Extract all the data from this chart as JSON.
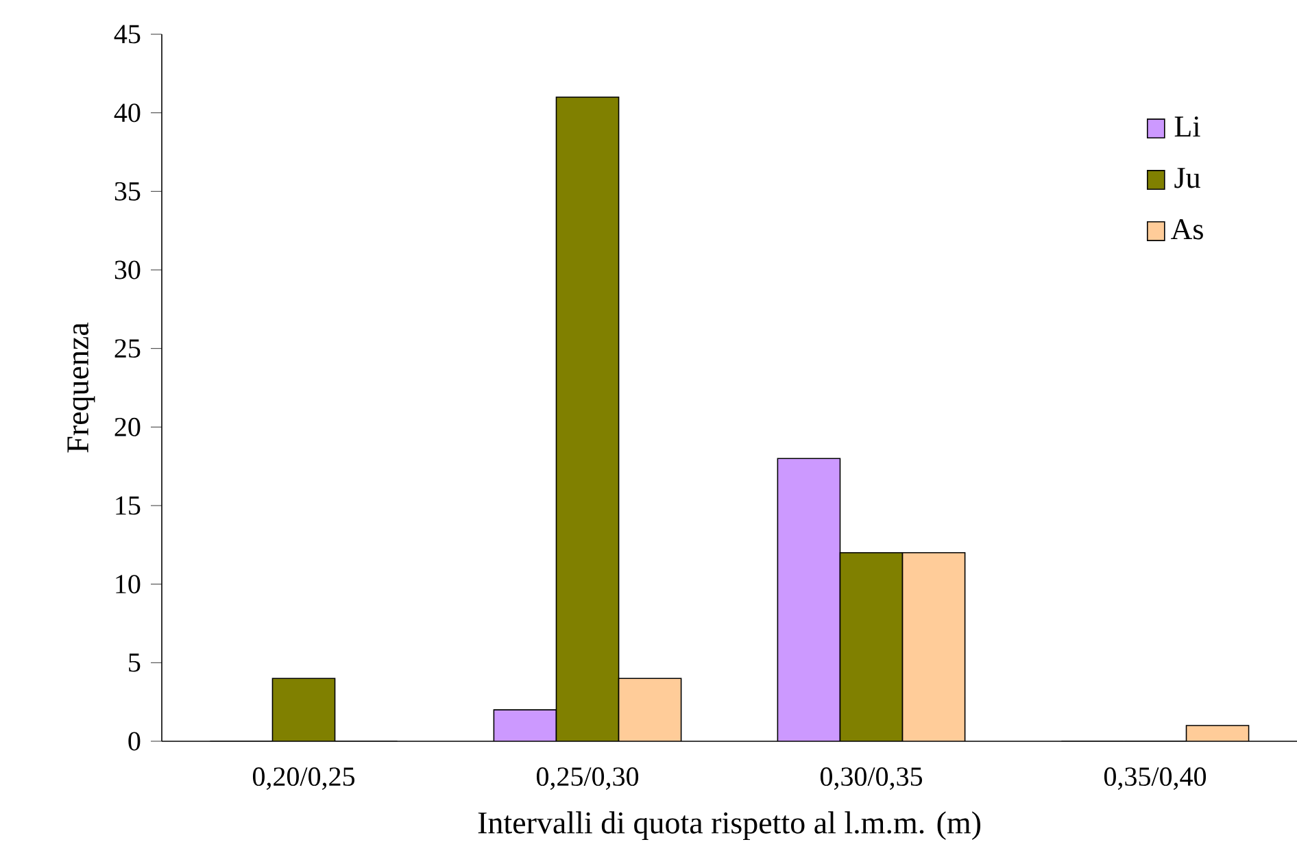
{
  "chart_data": {
    "type": "bar",
    "xlabel": "Intervalli di quota rispetto al l.m.m. (m)",
    "ylabel": "Frequenza",
    "categories": [
      "0,20/0,25",
      "0,25/0,30",
      "0,30/0,35",
      "0,35/0,40"
    ],
    "series": [
      {
        "name": "Li",
        "color": "#cc99ff",
        "values": [
          0,
          2,
          18,
          0
        ]
      },
      {
        "name": "Ju",
        "color": "#808000",
        "values": [
          4,
          41,
          12,
          0
        ]
      },
      {
        "name": "As",
        "color": "#ffcc99",
        "values": [
          0,
          4,
          12,
          1
        ]
      }
    ],
    "ylim": [
      0,
      45
    ],
    "yticks": [
      0,
      5,
      10,
      15,
      20,
      25,
      30,
      35,
      40,
      45
    ],
    "legend": "top right"
  }
}
